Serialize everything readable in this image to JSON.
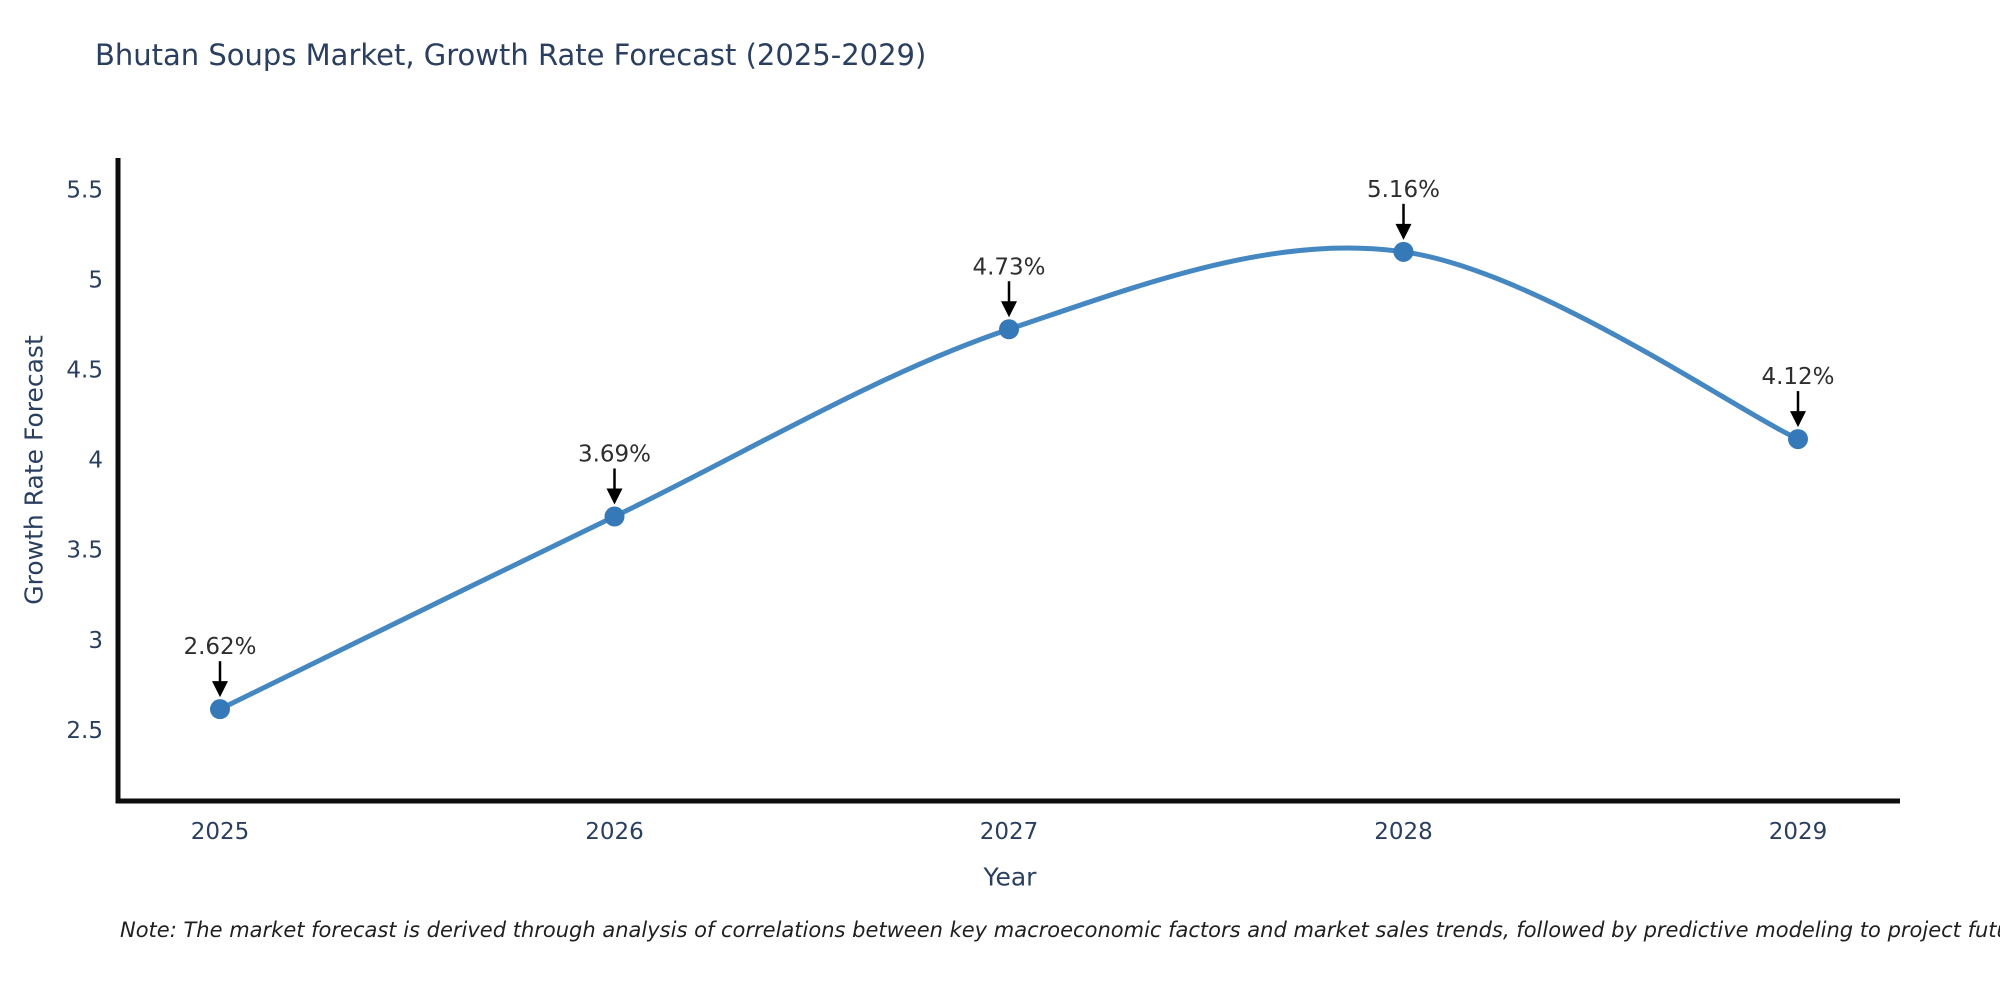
{
  "chart_data": {
    "type": "line",
    "title": "Bhutan Soups Market, Growth Rate Forecast (2025-2029)",
    "xlabel": "Year",
    "ylabel": "Growth Rate Forecast",
    "categories": [
      "2025",
      "2026",
      "2027",
      "2028",
      "2029"
    ],
    "series": [
      {
        "name": "Growth Rate Forecast",
        "values": [
          2.62,
          3.69,
          4.73,
          5.16,
          4.12
        ]
      }
    ],
    "point_labels": [
      "2.62%",
      "3.69%",
      "4.73%",
      "5.16%",
      "4.12%"
    ],
    "yticks": [
      2.5,
      3,
      3.5,
      4,
      4.5,
      5,
      5.5
    ],
    "ylim": [
      2.11,
      5.67
    ],
    "line_shape": "spline",
    "grid": false,
    "legend": "none",
    "colors": {
      "line": "#4587c1",
      "marker": "#3579b8",
      "axis": "#0d0d0d",
      "axis_text": "#2a3f5f",
      "annotation_text": "#2e2e2e",
      "annotation_arrow": "#000000",
      "background": "#ffffff"
    }
  },
  "note": {
    "text": "Note: The market forecast is derived through analysis of correlations between key macroeconomic factors and market sales trends, followed by predictive modeling to project future sales"
  }
}
